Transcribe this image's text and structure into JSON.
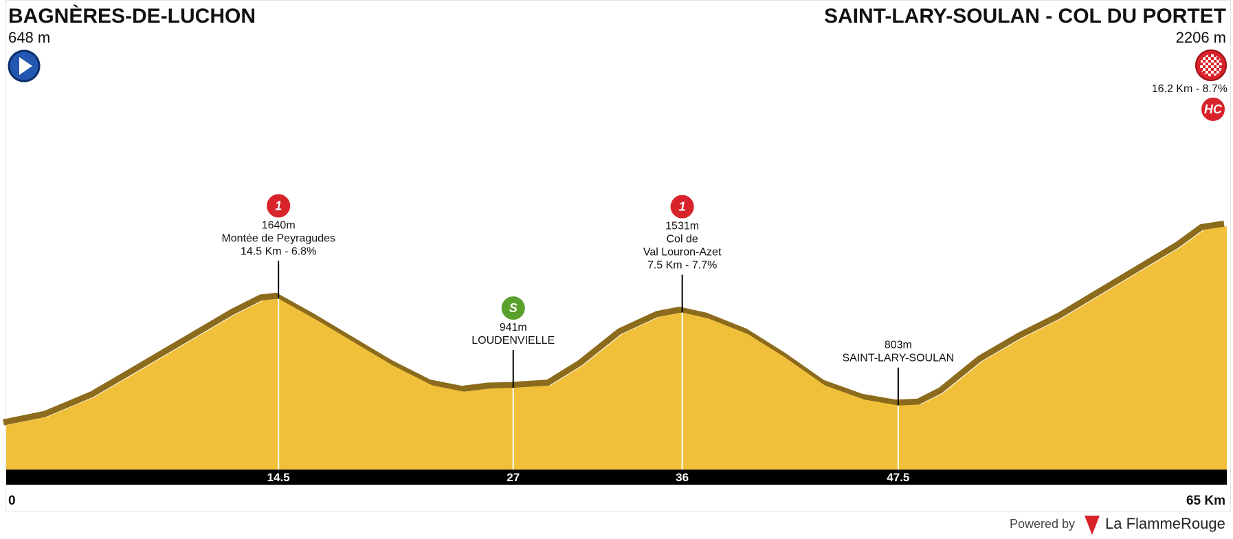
{
  "chart_data": {
    "type": "area",
    "x": [
      0,
      2.2,
      4.7,
      7.2,
      9.7,
      12.2,
      13.7,
      14.5,
      16.4,
      18.5,
      20.6,
      22.7,
      24.4,
      25.8,
      27,
      29,
      30.7,
      32.8,
      34.8,
      36,
      37.4,
      39.5,
      41.5,
      43.6,
      45.7,
      47.5,
      48.7,
      49.9,
      52,
      54.1,
      56.2,
      58.3,
      60.4,
      62.5,
      63.8,
      65
    ],
    "values": [
      648,
      714,
      868,
      1084,
      1300,
      1516,
      1627,
      1640,
      1485,
      1300,
      1115,
      960,
      911,
      936,
      941,
      960,
      1115,
      1362,
      1498,
      1531,
      1485,
      1362,
      1177,
      960,
      849,
      803,
      810,
      900,
      1150,
      1330,
      1485,
      1670,
      1855,
      2040,
      2180,
      2206
    ],
    "color": "#f0c03a",
    "edge_color": "#8c6b1c",
    "xlim": [
      0,
      65
    ],
    "xticks": [
      0,
      {
        "value": 65,
        "label": "65 Km"
      }
    ],
    "ylim": [
      300,
      2300
    ],
    "start": {
      "name": "BAGNÈRES-DE-LUCHON",
      "elevation": 648,
      "elevation_label": "648 m"
    },
    "finish": {
      "name": "SAINT-LARY-SOULAN - COL DU PORTET",
      "elevation": 2206,
      "elevation_label": "2206 m",
      "climb": "16.2 Km - 8.7%",
      "category": "HC",
      "category_color": "#d8232a"
    },
    "markers": [
      {
        "km": 14.5,
        "elevation": 1640,
        "elevation_label": "1640m",
        "name_lines": [
          "Montée de Peyragudes"
        ],
        "climb": "14.5 Km - 6.8%",
        "category": "1",
        "category_color": "#d8232a"
      },
      {
        "km": 27,
        "elevation": 941,
        "elevation_label": "941m",
        "name_lines": [
          "LOUDENVIELLE"
        ],
        "category": "S",
        "category_color": "#5aa02c"
      },
      {
        "km": 36,
        "elevation": 1531,
        "elevation_label": "1531m",
        "name_lines": [
          "Col de",
          "Val Louron-Azet"
        ],
        "climb": "7.5 Km - 7.7%",
        "category": "1",
        "category_color": "#d8232a"
      },
      {
        "km": 47.5,
        "elevation": 803,
        "elevation_label": "803m",
        "name_lines": [
          "SAINT-LARY-SOULAN"
        ]
      }
    ]
  },
  "footer": {
    "powered_by": "Powered by",
    "brand": "La FlammeRouge"
  }
}
